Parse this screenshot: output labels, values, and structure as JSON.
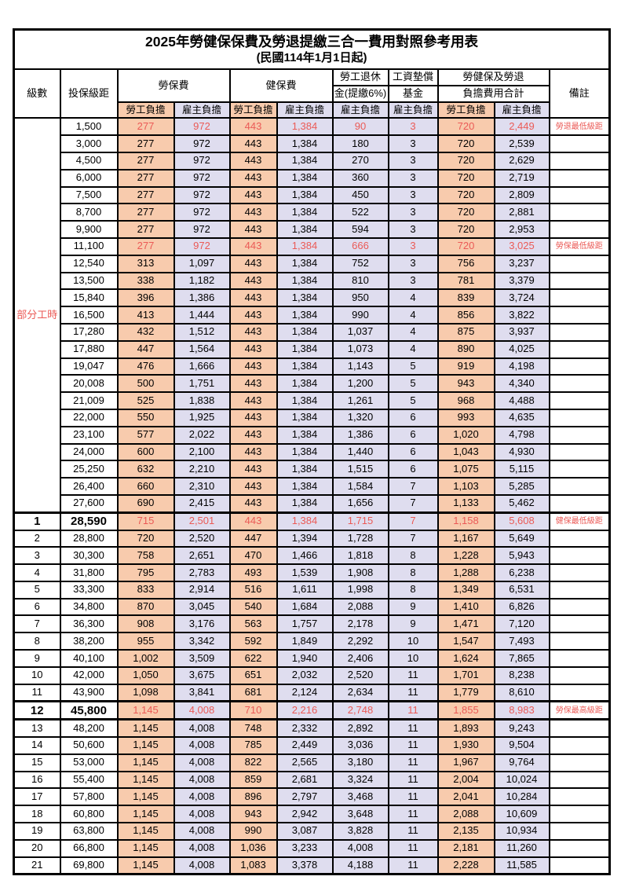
{
  "title": "2025年勞健保保費及勞退提繳三合一費用對照參考用表",
  "subtitle": "(民國114年1月1日起)",
  "colors": {
    "employee_share_bg": "#F8CBAD",
    "employer_share_bg": "#DFDDEF",
    "highlight_text": "#EB5A56",
    "border": "#000000"
  },
  "table": {
    "headers": {
      "grade": "級數",
      "bracket": "投保級距",
      "labor_insurance": "勞保費",
      "health_insurance": "健保費",
      "pension_line1": "勞工退休",
      "pension_line2": "金(提繳6%)",
      "wage_fund_line1": "工資墊償",
      "wage_fund_line2": "基金",
      "total_line1": "勞健保及勞退",
      "total_line2": "負擔費用合計",
      "remark": "備註",
      "employee_share": "勞工負擔",
      "employer_share": "雇主負擔"
    },
    "part_time_label": "部分工時",
    "part_time_rowspan": 23,
    "rows": [
      {
        "grade": "",
        "bracket": "1,500",
        "li_emp": "277",
        "li_er": "972",
        "hi_emp": "443",
        "hi_er": "1,384",
        "pension": "90",
        "wage_fund": "3",
        "tot_emp": "720",
        "tot_er": "2,449",
        "remark": "勞退最低級距",
        "highlight": true,
        "emphasis": false
      },
      {
        "grade": "",
        "bracket": "3,000",
        "li_emp": "277",
        "li_er": "972",
        "hi_emp": "443",
        "hi_er": "1,384",
        "pension": "180",
        "wage_fund": "3",
        "tot_emp": "720",
        "tot_er": "2,539",
        "remark": "",
        "highlight": false,
        "emphasis": false
      },
      {
        "grade": "",
        "bracket": "4,500",
        "li_emp": "277",
        "li_er": "972",
        "hi_emp": "443",
        "hi_er": "1,384",
        "pension": "270",
        "wage_fund": "3",
        "tot_emp": "720",
        "tot_er": "2,629",
        "remark": "",
        "highlight": false,
        "emphasis": false
      },
      {
        "grade": "",
        "bracket": "6,000",
        "li_emp": "277",
        "li_er": "972",
        "hi_emp": "443",
        "hi_er": "1,384",
        "pension": "360",
        "wage_fund": "3",
        "tot_emp": "720",
        "tot_er": "2,719",
        "remark": "",
        "highlight": false,
        "emphasis": false
      },
      {
        "grade": "",
        "bracket": "7,500",
        "li_emp": "277",
        "li_er": "972",
        "hi_emp": "443",
        "hi_er": "1,384",
        "pension": "450",
        "wage_fund": "3",
        "tot_emp": "720",
        "tot_er": "2,809",
        "remark": "",
        "highlight": false,
        "emphasis": false
      },
      {
        "grade": "",
        "bracket": "8,700",
        "li_emp": "277",
        "li_er": "972",
        "hi_emp": "443",
        "hi_er": "1,384",
        "pension": "522",
        "wage_fund": "3",
        "tot_emp": "720",
        "tot_er": "2,881",
        "remark": "",
        "highlight": false,
        "emphasis": false
      },
      {
        "grade": "",
        "bracket": "9,900",
        "li_emp": "277",
        "li_er": "972",
        "hi_emp": "443",
        "hi_er": "1,384",
        "pension": "594",
        "wage_fund": "3",
        "tot_emp": "720",
        "tot_er": "2,953",
        "remark": "",
        "highlight": false,
        "emphasis": false
      },
      {
        "grade": "",
        "bracket": "11,100",
        "li_emp": "277",
        "li_er": "972",
        "hi_emp": "443",
        "hi_er": "1,384",
        "pension": "666",
        "wage_fund": "3",
        "tot_emp": "720",
        "tot_er": "3,025",
        "remark": "勞保最低級距",
        "highlight": true,
        "emphasis": false
      },
      {
        "grade": "",
        "bracket": "12,540",
        "li_emp": "313",
        "li_er": "1,097",
        "hi_emp": "443",
        "hi_er": "1,384",
        "pension": "752",
        "wage_fund": "3",
        "tot_emp": "756",
        "tot_er": "3,237",
        "remark": "",
        "highlight": false,
        "emphasis": false
      },
      {
        "grade": "",
        "bracket": "13,500",
        "li_emp": "338",
        "li_er": "1,182",
        "hi_emp": "443",
        "hi_er": "1,384",
        "pension": "810",
        "wage_fund": "3",
        "tot_emp": "781",
        "tot_er": "3,379",
        "remark": "",
        "highlight": false,
        "emphasis": false
      },
      {
        "grade": "",
        "bracket": "15,840",
        "li_emp": "396",
        "li_er": "1,386",
        "hi_emp": "443",
        "hi_er": "1,384",
        "pension": "950",
        "wage_fund": "4",
        "tot_emp": "839",
        "tot_er": "3,724",
        "remark": "",
        "highlight": false,
        "emphasis": false
      },
      {
        "grade": "",
        "bracket": "16,500",
        "li_emp": "413",
        "li_er": "1,444",
        "hi_emp": "443",
        "hi_er": "1,384",
        "pension": "990",
        "wage_fund": "4",
        "tot_emp": "856",
        "tot_er": "3,822",
        "remark": "",
        "highlight": false,
        "emphasis": false
      },
      {
        "grade": "",
        "bracket": "17,280",
        "li_emp": "432",
        "li_er": "1,512",
        "hi_emp": "443",
        "hi_er": "1,384",
        "pension": "1,037",
        "wage_fund": "4",
        "tot_emp": "875",
        "tot_er": "3,937",
        "remark": "",
        "highlight": false,
        "emphasis": false
      },
      {
        "grade": "",
        "bracket": "17,880",
        "li_emp": "447",
        "li_er": "1,564",
        "hi_emp": "443",
        "hi_er": "1,384",
        "pension": "1,073",
        "wage_fund": "4",
        "tot_emp": "890",
        "tot_er": "4,025",
        "remark": "",
        "highlight": false,
        "emphasis": false
      },
      {
        "grade": "",
        "bracket": "19,047",
        "li_emp": "476",
        "li_er": "1,666",
        "hi_emp": "443",
        "hi_er": "1,384",
        "pension": "1,143",
        "wage_fund": "5",
        "tot_emp": "919",
        "tot_er": "4,198",
        "remark": "",
        "highlight": false,
        "emphasis": false
      },
      {
        "grade": "",
        "bracket": "20,008",
        "li_emp": "500",
        "li_er": "1,751",
        "hi_emp": "443",
        "hi_er": "1,384",
        "pension": "1,200",
        "wage_fund": "5",
        "tot_emp": "943",
        "tot_er": "4,340",
        "remark": "",
        "highlight": false,
        "emphasis": false
      },
      {
        "grade": "",
        "bracket": "21,009",
        "li_emp": "525",
        "li_er": "1,838",
        "hi_emp": "443",
        "hi_er": "1,384",
        "pension": "1,261",
        "wage_fund": "5",
        "tot_emp": "968",
        "tot_er": "4,488",
        "remark": "",
        "highlight": false,
        "emphasis": false
      },
      {
        "grade": "",
        "bracket": "22,000",
        "li_emp": "550",
        "li_er": "1,925",
        "hi_emp": "443",
        "hi_er": "1,384",
        "pension": "1,320",
        "wage_fund": "6",
        "tot_emp": "993",
        "tot_er": "4,635",
        "remark": "",
        "highlight": false,
        "emphasis": false
      },
      {
        "grade": "",
        "bracket": "23,100",
        "li_emp": "577",
        "li_er": "2,022",
        "hi_emp": "443",
        "hi_er": "1,384",
        "pension": "1,386",
        "wage_fund": "6",
        "tot_emp": "1,020",
        "tot_er": "4,798",
        "remark": "",
        "highlight": false,
        "emphasis": false
      },
      {
        "grade": "",
        "bracket": "24,000",
        "li_emp": "600",
        "li_er": "2,100",
        "hi_emp": "443",
        "hi_er": "1,384",
        "pension": "1,440",
        "wage_fund": "6",
        "tot_emp": "1,043",
        "tot_er": "4,930",
        "remark": "",
        "highlight": false,
        "emphasis": false
      },
      {
        "grade": "",
        "bracket": "25,250",
        "li_emp": "632",
        "li_er": "2,210",
        "hi_emp": "443",
        "hi_er": "1,384",
        "pension": "1,515",
        "wage_fund": "6",
        "tot_emp": "1,075",
        "tot_er": "5,115",
        "remark": "",
        "highlight": false,
        "emphasis": false
      },
      {
        "grade": "",
        "bracket": "26,400",
        "li_emp": "660",
        "li_er": "2,310",
        "hi_emp": "443",
        "hi_er": "1,384",
        "pension": "1,584",
        "wage_fund": "7",
        "tot_emp": "1,103",
        "tot_er": "5,285",
        "remark": "",
        "highlight": false,
        "emphasis": false
      },
      {
        "grade": "",
        "bracket": "27,600",
        "li_emp": "690",
        "li_er": "2,415",
        "hi_emp": "443",
        "hi_er": "1,384",
        "pension": "1,656",
        "wage_fund": "7",
        "tot_emp": "1,133",
        "tot_er": "5,462",
        "remark": "",
        "highlight": false,
        "emphasis": false
      },
      {
        "grade": "1",
        "bracket": "28,590",
        "li_emp": "715",
        "li_er": "2,501",
        "hi_emp": "443",
        "hi_er": "1,384",
        "pension": "1,715",
        "wage_fund": "7",
        "tot_emp": "1,158",
        "tot_er": "5,608",
        "remark": "健保最低級距",
        "highlight": true,
        "emphasis": true
      },
      {
        "grade": "2",
        "bracket": "28,800",
        "li_emp": "720",
        "li_er": "2,520",
        "hi_emp": "447",
        "hi_er": "1,394",
        "pension": "1,728",
        "wage_fund": "7",
        "tot_emp": "1,167",
        "tot_er": "5,649",
        "remark": "",
        "highlight": false,
        "emphasis": false
      },
      {
        "grade": "3",
        "bracket": "30,300",
        "li_emp": "758",
        "li_er": "2,651",
        "hi_emp": "470",
        "hi_er": "1,466",
        "pension": "1,818",
        "wage_fund": "8",
        "tot_emp": "1,228",
        "tot_er": "5,943",
        "remark": "",
        "highlight": false,
        "emphasis": false
      },
      {
        "grade": "4",
        "bracket": "31,800",
        "li_emp": "795",
        "li_er": "2,783",
        "hi_emp": "493",
        "hi_er": "1,539",
        "pension": "1,908",
        "wage_fund": "8",
        "tot_emp": "1,288",
        "tot_er": "6,238",
        "remark": "",
        "highlight": false,
        "emphasis": false
      },
      {
        "grade": "5",
        "bracket": "33,300",
        "li_emp": "833",
        "li_er": "2,914",
        "hi_emp": "516",
        "hi_er": "1,611",
        "pension": "1,998",
        "wage_fund": "8",
        "tot_emp": "1,349",
        "tot_er": "6,531",
        "remark": "",
        "highlight": false,
        "emphasis": false
      },
      {
        "grade": "6",
        "bracket": "34,800",
        "li_emp": "870",
        "li_er": "3,045",
        "hi_emp": "540",
        "hi_er": "1,684",
        "pension": "2,088",
        "wage_fund": "9",
        "tot_emp": "1,410",
        "tot_er": "6,826",
        "remark": "",
        "highlight": false,
        "emphasis": false
      },
      {
        "grade": "7",
        "bracket": "36,300",
        "li_emp": "908",
        "li_er": "3,176",
        "hi_emp": "563",
        "hi_er": "1,757",
        "pension": "2,178",
        "wage_fund": "9",
        "tot_emp": "1,471",
        "tot_er": "7,120",
        "remark": "",
        "highlight": false,
        "emphasis": false
      },
      {
        "grade": "8",
        "bracket": "38,200",
        "li_emp": "955",
        "li_er": "3,342",
        "hi_emp": "592",
        "hi_er": "1,849",
        "pension": "2,292",
        "wage_fund": "10",
        "tot_emp": "1,547",
        "tot_er": "7,493",
        "remark": "",
        "highlight": false,
        "emphasis": false
      },
      {
        "grade": "9",
        "bracket": "40,100",
        "li_emp": "1,002",
        "li_er": "3,509",
        "hi_emp": "622",
        "hi_er": "1,940",
        "pension": "2,406",
        "wage_fund": "10",
        "tot_emp": "1,624",
        "tot_er": "7,865",
        "remark": "",
        "highlight": false,
        "emphasis": false
      },
      {
        "grade": "10",
        "bracket": "42,000",
        "li_emp": "1,050",
        "li_er": "3,675",
        "hi_emp": "651",
        "hi_er": "2,032",
        "pension": "2,520",
        "wage_fund": "11",
        "tot_emp": "1,701",
        "tot_er": "8,238",
        "remark": "",
        "highlight": false,
        "emphasis": false
      },
      {
        "grade": "11",
        "bracket": "43,900",
        "li_emp": "1,098",
        "li_er": "3,841",
        "hi_emp": "681",
        "hi_er": "2,124",
        "pension": "2,634",
        "wage_fund": "11",
        "tot_emp": "1,779",
        "tot_er": "8,610",
        "remark": "",
        "highlight": false,
        "emphasis": false
      },
      {
        "grade": "12",
        "bracket": "45,800",
        "li_emp": "1,145",
        "li_er": "4,008",
        "hi_emp": "710",
        "hi_er": "2,216",
        "pension": "2,748",
        "wage_fund": "11",
        "tot_emp": "1,855",
        "tot_er": "8,983",
        "remark": "勞保最高級距",
        "highlight": true,
        "emphasis": true
      },
      {
        "grade": "13",
        "bracket": "48,200",
        "li_emp": "1,145",
        "li_er": "4,008",
        "hi_emp": "748",
        "hi_er": "2,332",
        "pension": "2,892",
        "wage_fund": "11",
        "tot_emp": "1,893",
        "tot_er": "9,243",
        "remark": "",
        "highlight": false,
        "emphasis": false
      },
      {
        "grade": "14",
        "bracket": "50,600",
        "li_emp": "1,145",
        "li_er": "4,008",
        "hi_emp": "785",
        "hi_er": "2,449",
        "pension": "3,036",
        "wage_fund": "11",
        "tot_emp": "1,930",
        "tot_er": "9,504",
        "remark": "",
        "highlight": false,
        "emphasis": false
      },
      {
        "grade": "15",
        "bracket": "53,000",
        "li_emp": "1,145",
        "li_er": "4,008",
        "hi_emp": "822",
        "hi_er": "2,565",
        "pension": "3,180",
        "wage_fund": "11",
        "tot_emp": "1,967",
        "tot_er": "9,764",
        "remark": "",
        "highlight": false,
        "emphasis": false
      },
      {
        "grade": "16",
        "bracket": "55,400",
        "li_emp": "1,145",
        "li_er": "4,008",
        "hi_emp": "859",
        "hi_er": "2,681",
        "pension": "3,324",
        "wage_fund": "11",
        "tot_emp": "2,004",
        "tot_er": "10,024",
        "remark": "",
        "highlight": false,
        "emphasis": false
      },
      {
        "grade": "17",
        "bracket": "57,800",
        "li_emp": "1,145",
        "li_er": "4,008",
        "hi_emp": "896",
        "hi_er": "2,797",
        "pension": "3,468",
        "wage_fund": "11",
        "tot_emp": "2,041",
        "tot_er": "10,284",
        "remark": "",
        "highlight": false,
        "emphasis": false
      },
      {
        "grade": "18",
        "bracket": "60,800",
        "li_emp": "1,145",
        "li_er": "4,008",
        "hi_emp": "943",
        "hi_er": "2,942",
        "pension": "3,648",
        "wage_fund": "11",
        "tot_emp": "2,088",
        "tot_er": "10,609",
        "remark": "",
        "highlight": false,
        "emphasis": false
      },
      {
        "grade": "19",
        "bracket": "63,800",
        "li_emp": "1,145",
        "li_er": "4,008",
        "hi_emp": "990",
        "hi_er": "3,087",
        "pension": "3,828",
        "wage_fund": "11",
        "tot_emp": "2,135",
        "tot_er": "10,934",
        "remark": "",
        "highlight": false,
        "emphasis": false
      },
      {
        "grade": "20",
        "bracket": "66,800",
        "li_emp": "1,145",
        "li_er": "4,008",
        "hi_emp": "1,036",
        "hi_er": "3,233",
        "pension": "4,008",
        "wage_fund": "11",
        "tot_emp": "2,181",
        "tot_er": "11,260",
        "remark": "",
        "highlight": false,
        "emphasis": false
      },
      {
        "grade": "21",
        "bracket": "69,800",
        "li_emp": "1,145",
        "li_er": "4,008",
        "hi_emp": "1,083",
        "hi_er": "3,378",
        "pension": "4,188",
        "wage_fund": "11",
        "tot_emp": "2,228",
        "tot_er": "11,585",
        "remark": "",
        "highlight": false,
        "emphasis": false
      }
    ]
  }
}
